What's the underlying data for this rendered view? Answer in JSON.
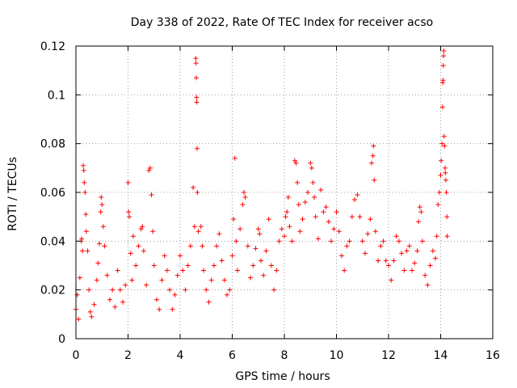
{
  "chart_data": {
    "type": "scatter",
    "title": "Day 338 of 2022, Rate Of TEC Index for receiver acso",
    "xlabel": "GPS time / hours",
    "ylabel": "ROTI / TECUs",
    "xlim": [
      0,
      16
    ],
    "ylim": [
      0,
      0.12
    ],
    "x_ticks": [
      "0",
      "2",
      "4",
      "6",
      "8",
      "10",
      "12",
      "14",
      "16"
    ],
    "y_ticks": [
      "0",
      "0.02",
      "0.04",
      "0.06",
      "0.08",
      "0.1",
      "0.12"
    ],
    "grid": true,
    "marker": "+",
    "color": "#ff0000",
    "series": [
      {
        "points": [
          [
            0.0,
            0.012
          ],
          [
            0.05,
            0.018
          ],
          [
            0.1,
            0.008
          ],
          [
            0.15,
            0.025
          ],
          [
            0.2,
            0.04
          ],
          [
            0.22,
            0.041
          ],
          [
            0.25,
            0.036
          ],
          [
            0.28,
            0.071
          ],
          [
            0.3,
            0.069
          ],
          [
            0.32,
            0.064
          ],
          [
            0.35,
            0.06
          ],
          [
            0.38,
            0.051
          ],
          [
            0.4,
            0.044
          ],
          [
            0.45,
            0.036
          ],
          [
            0.5,
            0.02
          ],
          [
            0.55,
            0.011
          ],
          [
            0.6,
            0.009
          ],
          [
            0.7,
            0.014
          ],
          [
            0.8,
            0.024
          ],
          [
            0.85,
            0.031
          ],
          [
            0.9,
            0.039
          ],
          [
            0.95,
            0.052
          ],
          [
            0.97,
            0.058
          ],
          [
            1.0,
            0.055
          ],
          [
            1.05,
            0.046
          ],
          [
            1.1,
            0.038
          ],
          [
            1.2,
            0.026
          ],
          [
            1.3,
            0.016
          ],
          [
            1.4,
            0.02
          ],
          [
            1.5,
            0.013
          ],
          [
            1.6,
            0.028
          ],
          [
            1.7,
            0.02
          ],
          [
            1.8,
            0.015
          ],
          [
            1.9,
            0.022
          ],
          [
            2.0,
            0.064
          ],
          [
            2.02,
            0.052
          ],
          [
            2.05,
            0.05
          ],
          [
            2.1,
            0.035
          ],
          [
            2.15,
            0.024
          ],
          [
            2.2,
            0.042
          ],
          [
            2.3,
            0.03
          ],
          [
            2.4,
            0.038
          ],
          [
            2.5,
            0.045
          ],
          [
            2.55,
            0.046
          ],
          [
            2.6,
            0.036
          ],
          [
            2.7,
            0.022
          ],
          [
            2.8,
            0.069
          ],
          [
            2.85,
            0.07
          ],
          [
            2.9,
            0.059
          ],
          [
            2.95,
            0.044
          ],
          [
            3.0,
            0.03
          ],
          [
            3.1,
            0.016
          ],
          [
            3.2,
            0.012
          ],
          [
            3.3,
            0.024
          ],
          [
            3.4,
            0.034
          ],
          [
            3.5,
            0.028
          ],
          [
            3.6,
            0.02
          ],
          [
            3.7,
            0.012
          ],
          [
            3.8,
            0.018
          ],
          [
            3.9,
            0.026
          ],
          [
            4.0,
            0.034
          ],
          [
            4.1,
            0.028
          ],
          [
            4.2,
            0.02
          ],
          [
            4.3,
            0.03
          ],
          [
            4.4,
            0.038
          ],
          [
            4.5,
            0.062
          ],
          [
            4.55,
            0.046
          ],
          [
            4.6,
            0.115
          ],
          [
            4.61,
            0.113
          ],
          [
            4.62,
            0.107
          ],
          [
            4.63,
            0.099
          ],
          [
            4.64,
            0.097
          ],
          [
            4.65,
            0.078
          ],
          [
            4.66,
            0.06
          ],
          [
            4.7,
            0.044
          ],
          [
            4.8,
            0.046
          ],
          [
            4.85,
            0.038
          ],
          [
            4.9,
            0.028
          ],
          [
            5.0,
            0.02
          ],
          [
            5.1,
            0.015
          ],
          [
            5.2,
            0.024
          ],
          [
            5.3,
            0.03
          ],
          [
            5.4,
            0.038
          ],
          [
            5.5,
            0.043
          ],
          [
            5.6,
            0.032
          ],
          [
            5.7,
            0.024
          ],
          [
            5.8,
            0.018
          ],
          [
            5.9,
            0.02
          ],
          [
            6.0,
            0.034
          ],
          [
            6.05,
            0.049
          ],
          [
            6.1,
            0.074
          ],
          [
            6.15,
            0.04
          ],
          [
            6.2,
            0.028
          ],
          [
            6.3,
            0.045
          ],
          [
            6.4,
            0.055
          ],
          [
            6.45,
            0.06
          ],
          [
            6.5,
            0.058
          ],
          [
            6.6,
            0.038
          ],
          [
            6.7,
            0.025
          ],
          [
            6.8,
            0.03
          ],
          [
            6.9,
            0.037
          ],
          [
            7.0,
            0.045
          ],
          [
            7.05,
            0.043
          ],
          [
            7.1,
            0.032
          ],
          [
            7.2,
            0.026
          ],
          [
            7.3,
            0.036
          ],
          [
            7.4,
            0.049
          ],
          [
            7.5,
            0.03
          ],
          [
            7.6,
            0.02
          ],
          [
            7.7,
            0.028
          ],
          [
            7.8,
            0.04
          ],
          [
            7.9,
            0.045
          ],
          [
            8.0,
            0.042
          ],
          [
            8.05,
            0.05
          ],
          [
            8.1,
            0.052
          ],
          [
            8.15,
            0.058
          ],
          [
            8.2,
            0.046
          ],
          [
            8.3,
            0.04
          ],
          [
            8.4,
            0.073
          ],
          [
            8.45,
            0.072
          ],
          [
            8.5,
            0.064
          ],
          [
            8.55,
            0.055
          ],
          [
            8.6,
            0.044
          ],
          [
            8.7,
            0.049
          ],
          [
            8.8,
            0.056
          ],
          [
            8.9,
            0.06
          ],
          [
            9.0,
            0.072
          ],
          [
            9.05,
            0.07
          ],
          [
            9.1,
            0.064
          ],
          [
            9.15,
            0.058
          ],
          [
            9.2,
            0.05
          ],
          [
            9.3,
            0.041
          ],
          [
            9.4,
            0.061
          ],
          [
            9.5,
            0.052
          ],
          [
            9.6,
            0.054
          ],
          [
            9.7,
            0.048
          ],
          [
            9.8,
            0.04
          ],
          [
            9.9,
            0.045
          ],
          [
            10.0,
            0.052
          ],
          [
            10.1,
            0.044
          ],
          [
            10.2,
            0.034
          ],
          [
            10.3,
            0.028
          ],
          [
            10.4,
            0.038
          ],
          [
            10.5,
            0.04
          ],
          [
            10.6,
            0.05
          ],
          [
            10.7,
            0.057
          ],
          [
            10.8,
            0.059
          ],
          [
            10.9,
            0.05
          ],
          [
            11.0,
            0.04
          ],
          [
            11.1,
            0.035
          ],
          [
            11.2,
            0.043
          ],
          [
            11.3,
            0.049
          ],
          [
            11.35,
            0.072
          ],
          [
            11.4,
            0.075
          ],
          [
            11.42,
            0.079
          ],
          [
            11.45,
            0.065
          ],
          [
            11.5,
            0.044
          ],
          [
            11.6,
            0.032
          ],
          [
            11.7,
            0.038
          ],
          [
            11.8,
            0.04
          ],
          [
            11.9,
            0.032
          ],
          [
            12.0,
            0.03
          ],
          [
            12.1,
            0.024
          ],
          [
            12.2,
            0.032
          ],
          [
            12.3,
            0.042
          ],
          [
            12.4,
            0.04
          ],
          [
            12.5,
            0.035
          ],
          [
            12.6,
            0.028
          ],
          [
            12.7,
            0.036
          ],
          [
            12.8,
            0.038
          ],
          [
            12.9,
            0.028
          ],
          [
            13.0,
            0.031
          ],
          [
            13.1,
            0.036
          ],
          [
            13.15,
            0.048
          ],
          [
            13.2,
            0.054
          ],
          [
            13.25,
            0.052
          ],
          [
            13.3,
            0.04
          ],
          [
            13.4,
            0.026
          ],
          [
            13.5,
            0.022
          ],
          [
            13.6,
            0.03
          ],
          [
            13.7,
            0.036
          ],
          [
            13.8,
            0.033
          ],
          [
            13.85,
            0.042
          ],
          [
            13.9,
            0.055
          ],
          [
            13.95,
            0.06
          ],
          [
            14.0,
            0.067
          ],
          [
            14.02,
            0.073
          ],
          [
            14.05,
            0.08
          ],
          [
            14.07,
            0.095
          ],
          [
            14.08,
            0.105
          ],
          [
            14.09,
            0.106
          ],
          [
            14.1,
            0.112
          ],
          [
            14.11,
            0.116
          ],
          [
            14.12,
            0.118
          ],
          [
            14.13,
            0.083
          ],
          [
            14.15,
            0.079
          ],
          [
            14.17,
            0.07
          ],
          [
            14.18,
            0.068
          ],
          [
            14.2,
            0.065
          ],
          [
            14.22,
            0.06
          ],
          [
            14.24,
            0.05
          ],
          [
            14.25,
            0.042
          ]
        ]
      }
    ]
  }
}
